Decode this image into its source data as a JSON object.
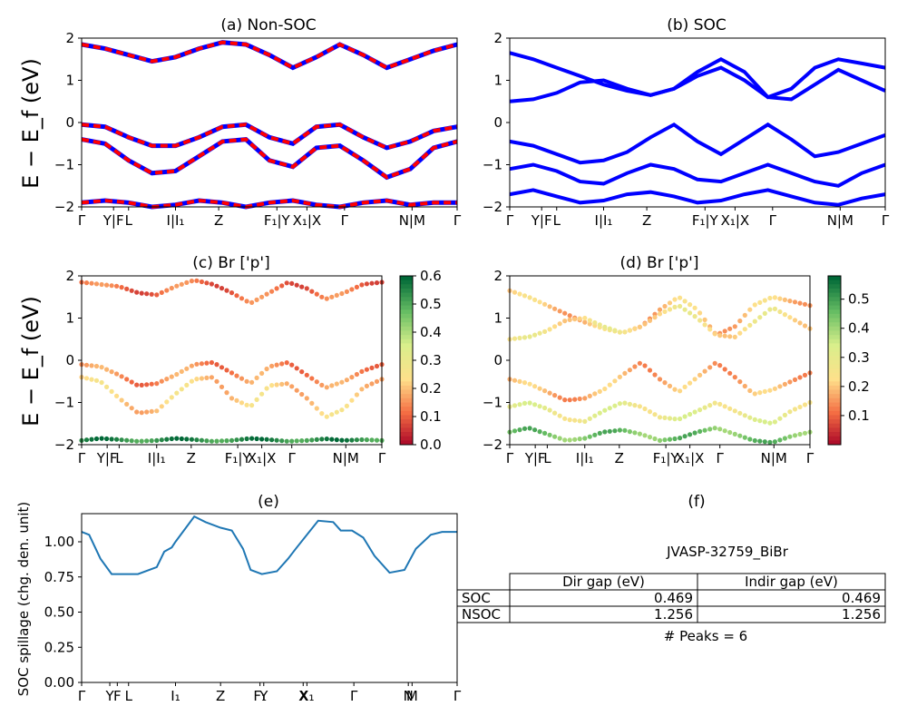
{
  "figure_id": "JVASP-32759_BiBr",
  "chart_data": [
    {
      "panel": "a",
      "type": "line",
      "title": "(a) Non-SOC",
      "ylabel": "E − E_f (eV)",
      "ylim": [
        -2,
        2
      ],
      "yticks": [
        "2",
        "1",
        "0",
        "−1",
        "−2"
      ],
      "xticks": [
        "Γ",
        "Y|F",
        "L",
        "I|I₁",
        "Z",
        "F₁|Y",
        "X₁|X",
        "Γ",
        "N|M",
        "Γ"
      ],
      "bands": [
        [
          1.85,
          1.75,
          1.6,
          1.45,
          1.55,
          1.75,
          1.9,
          1.85,
          1.6,
          1.3,
          1.55,
          1.85,
          1.6,
          1.3,
          1.5,
          1.7,
          1.85
        ],
        [
          -0.05,
          -0.1,
          -0.35,
          -0.55,
          -0.55,
          -0.35,
          -0.1,
          -0.05,
          -0.35,
          -0.5,
          -0.1,
          -0.05,
          -0.35,
          -0.6,
          -0.45,
          -0.2,
          -0.1
        ],
        [
          -0.4,
          -0.5,
          -0.9,
          -1.2,
          -1.15,
          -0.8,
          -0.45,
          -0.4,
          -0.9,
          -1.05,
          -0.6,
          -0.55,
          -0.9,
          -1.3,
          -1.1,
          -0.6,
          -0.45
        ],
        [
          -1.9,
          -1.85,
          -1.9,
          -2.0,
          -1.95,
          -1.85,
          -1.9,
          -2.0,
          -1.9,
          -1.85,
          -1.95,
          -2.0,
          -1.9,
          -1.85,
          -1.95,
          -1.9,
          -1.9
        ]
      ],
      "series": [
        {
          "color": "#ff0000"
        },
        {
          "color": "#0000ff"
        }
      ]
    },
    {
      "panel": "b",
      "type": "line",
      "title": "(b) SOC",
      "ylim": [
        -2,
        2
      ],
      "yticks": [
        "2",
        "1",
        "0",
        "−1",
        "−2"
      ],
      "xticks": [
        "Γ",
        "Y|F",
        "L",
        "I|I₁",
        "Z",
        "F₁|Y",
        "X₁|X",
        "Γ",
        "N|M",
        "Γ"
      ],
      "bands": [
        [
          1.65,
          1.5,
          1.3,
          1.1,
          0.9,
          0.75,
          0.65,
          0.8,
          1.2,
          1.5,
          1.2,
          0.6,
          0.8,
          1.3,
          1.5,
          1.4,
          1.3
        ],
        [
          0.5,
          0.55,
          0.7,
          0.95,
          1.0,
          0.8,
          0.65,
          0.8,
          1.1,
          1.3,
          1.0,
          0.6,
          0.55,
          0.9,
          1.25,
          1.0,
          0.75
        ],
        [
          -0.45,
          -0.55,
          -0.75,
          -0.95,
          -0.9,
          -0.7,
          -0.35,
          -0.05,
          -0.45,
          -0.75,
          -0.4,
          -0.05,
          -0.4,
          -0.8,
          -0.7,
          -0.5,
          -0.3
        ],
        [
          -1.1,
          -1.0,
          -1.15,
          -1.4,
          -1.45,
          -1.2,
          -1.0,
          -1.1,
          -1.35,
          -1.4,
          -1.2,
          -1.0,
          -1.2,
          -1.4,
          -1.5,
          -1.2,
          -1.0
        ],
        [
          -1.7,
          -1.6,
          -1.75,
          -1.9,
          -1.85,
          -1.7,
          -1.65,
          -1.75,
          -1.9,
          -1.85,
          -1.7,
          -1.6,
          -1.75,
          -1.9,
          -1.95,
          -1.8,
          -1.7
        ]
      ],
      "series": [
        {
          "color": "#0000ff"
        }
      ]
    },
    {
      "panel": "c",
      "type": "scatter",
      "title": "(c)  Br ['p']",
      "ylabel": "E − E_f (eV)",
      "ylim": [
        -2,
        2
      ],
      "yticks": [
        "2",
        "1",
        "0",
        "−1",
        "−2"
      ],
      "xticks": [
        "Γ",
        "Y|F",
        "L",
        "I|I₁",
        "Z",
        "F₁|Y",
        "X₁|X",
        "Γ",
        "N|M",
        "Γ"
      ],
      "colorbar": {
        "ticks": [
          "0.6",
          "0.5",
          "0.4",
          "0.3",
          "0.2",
          "0.1",
          "0.0"
        ],
        "range": [
          0,
          0.6
        ],
        "colormap": "RdYlGn"
      },
      "bands": [
        [
          1.85,
          1.8,
          1.75,
          1.6,
          1.55,
          1.75,
          1.9,
          1.8,
          1.6,
          1.35,
          1.6,
          1.85,
          1.7,
          1.45,
          1.6,
          1.8,
          1.85
        ],
        [
          -0.1,
          -0.15,
          -0.35,
          -0.6,
          -0.55,
          -0.35,
          -0.1,
          -0.05,
          -0.3,
          -0.55,
          -0.15,
          -0.05,
          -0.35,
          -0.65,
          -0.5,
          -0.25,
          -0.1
        ],
        [
          -0.4,
          -0.5,
          -0.9,
          -1.25,
          -1.2,
          -0.8,
          -0.45,
          -0.4,
          -0.9,
          -1.1,
          -0.6,
          -0.55,
          -0.9,
          -1.35,
          -1.15,
          -0.65,
          -0.45
        ],
        [
          -1.9,
          -1.85,
          -1.88,
          -1.92,
          -1.9,
          -1.85,
          -1.88,
          -1.92,
          -1.9,
          -1.85,
          -1.88,
          -1.92,
          -1.9,
          -1.86,
          -1.9,
          -1.88,
          -1.9
        ]
      ],
      "band_weights": [
        0.12,
        0.15,
        0.22,
        0.55
      ]
    },
    {
      "panel": "d",
      "type": "scatter",
      "title": "(d) Br ['p']",
      "ylim": [
        -2,
        2
      ],
      "yticks": [
        "2",
        "1",
        "0",
        "−1",
        "−2"
      ],
      "xticks": [
        "Γ",
        "Y|F",
        "L",
        "I|I₁",
        "Z",
        "F₁|Y",
        "X₁|X",
        "Γ",
        "N|M",
        "Γ"
      ],
      "colorbar": {
        "ticks": [
          "0.5",
          "0.4",
          "0.3",
          "0.2",
          "0.1"
        ],
        "range": [
          0,
          0.58
        ],
        "colormap": "RdYlGn"
      },
      "bands": [
        [
          1.65,
          1.5,
          1.3,
          1.1,
          0.9,
          0.75,
          0.65,
          0.8,
          1.2,
          1.5,
          1.2,
          0.6,
          0.8,
          1.3,
          1.5,
          1.4,
          1.3
        ],
        [
          0.5,
          0.55,
          0.7,
          0.95,
          1.0,
          0.8,
          0.65,
          0.8,
          1.1,
          1.3,
          1.0,
          0.6,
          0.55,
          0.9,
          1.25,
          1.0,
          0.75
        ],
        [
          -0.45,
          -0.55,
          -0.75,
          -0.95,
          -0.9,
          -0.7,
          -0.35,
          -0.05,
          -0.45,
          -0.75,
          -0.4,
          -0.05,
          -0.4,
          -0.8,
          -0.7,
          -0.5,
          -0.3
        ],
        [
          -1.1,
          -1.0,
          -1.15,
          -1.4,
          -1.45,
          -1.2,
          -1.0,
          -1.1,
          -1.35,
          -1.4,
          -1.2,
          -1.0,
          -1.2,
          -1.4,
          -1.5,
          -1.2,
          -1.0
        ],
        [
          -1.7,
          -1.6,
          -1.75,
          -1.9,
          -1.85,
          -1.7,
          -1.65,
          -1.75,
          -1.9,
          -1.85,
          -1.7,
          -1.6,
          -1.75,
          -1.9,
          -1.95,
          -1.8,
          -1.7
        ]
      ],
      "band_weights": [
        0.2,
        0.25,
        0.18,
        0.3,
        0.45
      ]
    },
    {
      "panel": "e",
      "type": "line",
      "title": "(e)",
      "ylabel": "SOC spillage (chg. den. unit)",
      "ylim": [
        0,
        1.2
      ],
      "yticks": [
        "1.00",
        "0.75",
        "0.50",
        "0.25",
        "0.00"
      ],
      "xticks": [
        "Γ",
        "Y",
        "F",
        "L",
        "I₁",
        "Z",
        "F₁",
        "Y",
        "X",
        "X₁",
        "Γ",
        "N",
        "M",
        "Γ"
      ],
      "x": [
        0,
        0.02,
        0.05,
        0.08,
        0.1,
        0.12,
        0.15,
        0.2,
        0.22,
        0.24,
        0.25,
        0.3,
        0.33,
        0.37,
        0.4,
        0.43,
        0.45,
        0.48,
        0.52,
        0.55,
        0.57,
        0.6,
        0.63,
        0.67,
        0.69,
        0.72,
        0.75,
        0.78,
        0.82,
        0.86,
        0.89,
        0.93,
        0.96,
        1.0
      ],
      "series": [
        {
          "color": "#1f77b4",
          "values": [
            1.07,
            1.05,
            0.88,
            0.77,
            0.77,
            0.77,
            0.77,
            0.82,
            0.93,
            0.96,
            1.0,
            1.18,
            1.14,
            1.1,
            1.08,
            0.95,
            0.8,
            0.77,
            0.79,
            0.88,
            0.95,
            1.05,
            1.15,
            1.14,
            1.08,
            1.08,
            1.03,
            0.9,
            0.78,
            0.8,
            0.95,
            1.05,
            1.07,
            1.07
          ]
        }
      ]
    }
  ],
  "panel_f": {
    "title": "(f)",
    "subtitle": "JVASP-32759_BiBr",
    "columns": [
      "",
      "Dir gap (eV)",
      "Indir gap (eV)"
    ],
    "rows": [
      [
        "SOC",
        "0.469",
        "0.469"
      ],
      [
        "NSOC",
        "1.256",
        "1.256"
      ]
    ],
    "footer": "# Peaks = 6"
  },
  "colors": {
    "red": "#ff0000",
    "blue": "#0000ff",
    "spillage_line": "#1f77b4"
  }
}
